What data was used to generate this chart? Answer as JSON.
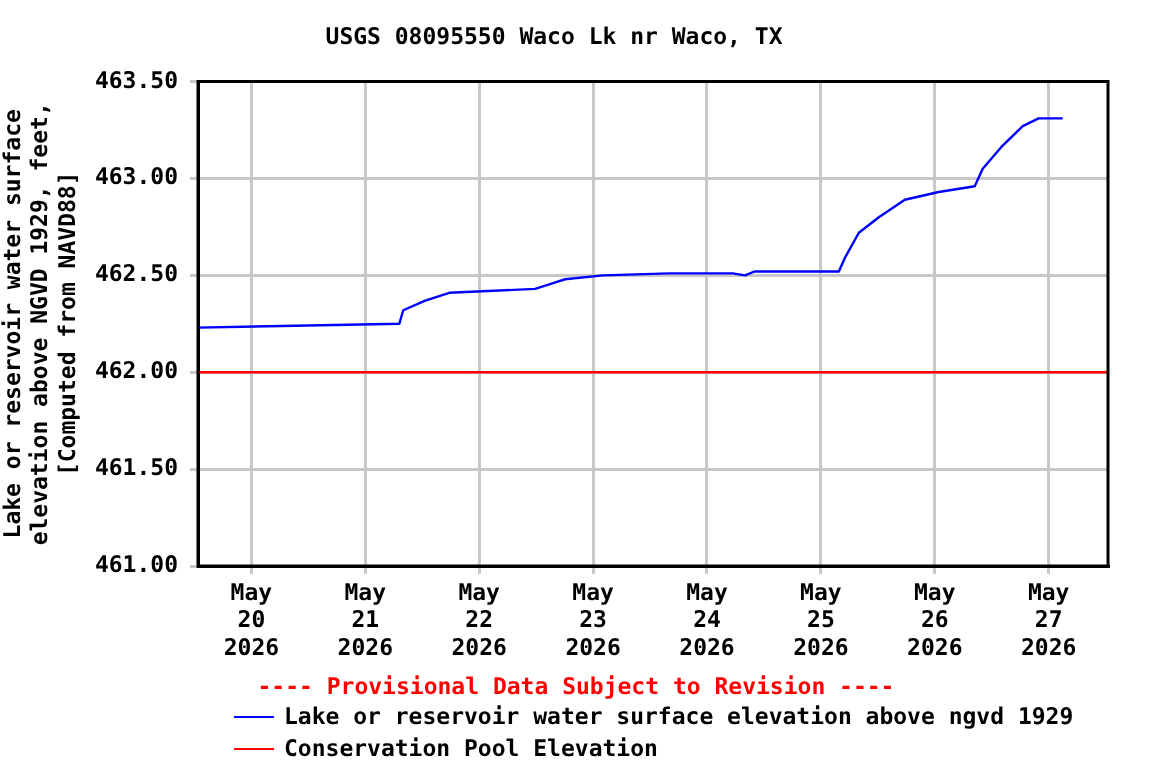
{
  "chart_data": {
    "type": "line",
    "title": "USGS 08095550 Waco Lk nr Waco, TX",
    "ylabel": "Lake or reservoir water surface\nelevation above NGVD 1929, feet,\n[Computed from NAVD88]",
    "annotations": [
      "---- Provisional Data Subject to Revision ----"
    ],
    "x": [
      "2026-05-19T12:45",
      "2026-05-20T09:15",
      "2026-05-21T07:10",
      "2026-05-21T08:00",
      "2026-05-21T12:38",
      "2026-05-21T17:41",
      "2026-05-22T11:47",
      "2026-05-22T15:35",
      "2026-05-22T18:06",
      "2026-05-23T02:07",
      "2026-05-23T16:00",
      "2026-05-24T05:28",
      "2026-05-24T08:00",
      "2026-05-24T10:06",
      "2026-05-25T03:47",
      "2026-05-25T05:03",
      "2026-05-25T08:00",
      "2026-05-25T12:13",
      "2026-05-25T17:41",
      "2026-05-26T00:50",
      "2026-05-26T08:25",
      "2026-05-26T10:06",
      "2026-05-26T14:18",
      "2026-05-26T18:32",
      "2026-05-26T21:53",
      "2026-05-27T02:57"
    ],
    "series": [
      {
        "name": "Lake or reservoir water surface elevation above ngvd 1929",
        "color": "#0000ff",
        "values": [
          462.23,
          462.24,
          462.25,
          462.32,
          462.37,
          462.41,
          462.43,
          462.46,
          462.48,
          462.5,
          462.51,
          462.51,
          462.5,
          462.52,
          462.52,
          462.59,
          462.72,
          462.8,
          462.89,
          462.93,
          462.96,
          463.05,
          463.17,
          463.27,
          463.31,
          463.31
        ]
      }
    ],
    "ref_lines": [
      {
        "axis": "y",
        "value": 462,
        "label": "Conservation Pool Elevation",
        "color": "#ff0000"
      }
    ],
    "xlim": [
      "2026-05-19T12:45",
      "2026-05-27T12:30"
    ],
    "xticks": [
      {
        "value": "2026-05-20",
        "label": "May 20 2026"
      },
      {
        "value": "2026-05-21",
        "label": "May 21 2026"
      },
      {
        "value": "2026-05-22",
        "label": "May 22 2026"
      },
      {
        "value": "2026-05-23",
        "label": "May 23 2026"
      },
      {
        "value": "2026-05-24",
        "label": "May 24 2026"
      },
      {
        "value": "2026-05-25",
        "label": "May 25 2026"
      },
      {
        "value": "2026-05-26",
        "label": "May 26 2026"
      },
      {
        "value": "2026-05-27",
        "label": "May 27 2026"
      }
    ],
    "ylim": [
      461,
      463.5
    ],
    "yticks": [
      {
        "value": 461,
        "label": "461.00"
      },
      {
        "value": 461.5,
        "label": "461.50"
      },
      {
        "value": 462,
        "label": "462.00"
      },
      {
        "value": 462.5,
        "label": "462.50"
      },
      {
        "value": 463,
        "label": "463.00"
      },
      {
        "value": 463.5,
        "label": "463.50"
      }
    ],
    "grid": true,
    "legend": "bottom",
    "marker": "none",
    "line_style": "solid"
  }
}
